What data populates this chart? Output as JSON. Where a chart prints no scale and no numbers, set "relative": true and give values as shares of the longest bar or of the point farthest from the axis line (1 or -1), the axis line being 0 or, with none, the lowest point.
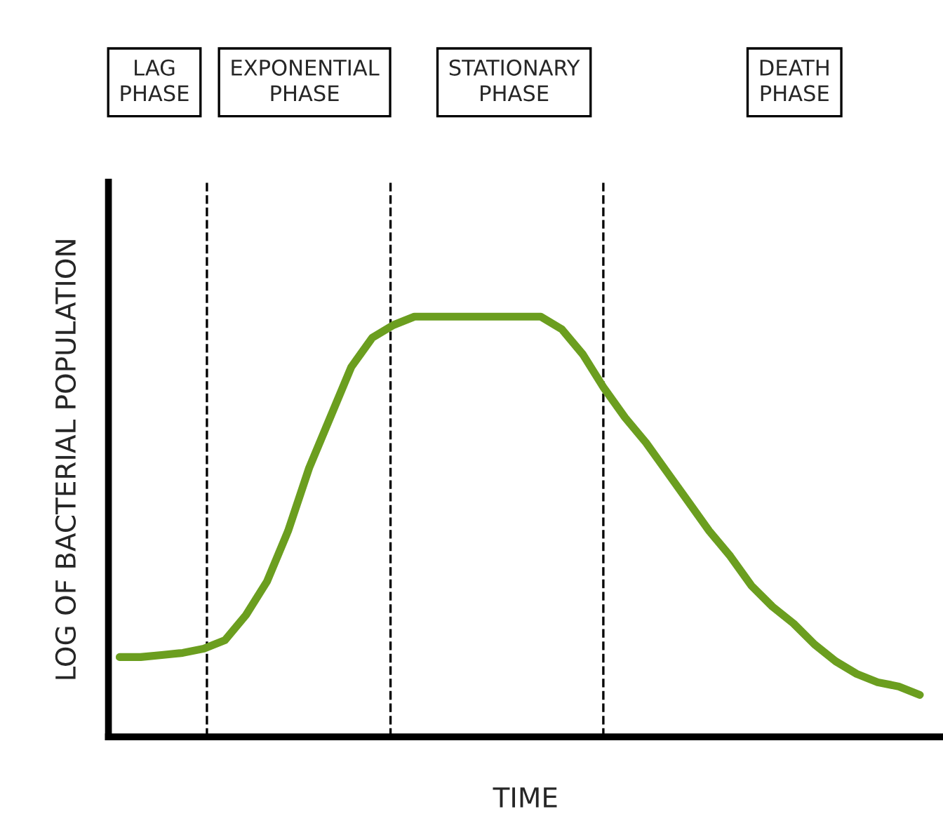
{
  "chart_data": {
    "type": "line",
    "relative": true,
    "xlabel": "TIME",
    "ylabel": "LOG OF BACTERIAL POPULATION",
    "categories": [
      null,
      null,
      null,
      null,
      null,
      null,
      null,
      null,
      null,
      null,
      null,
      null,
      null,
      null,
      null,
      null,
      null,
      null,
      null,
      null,
      null,
      null,
      null,
      null,
      null,
      null,
      null,
      null,
      null,
      null,
      null,
      null,
      null,
      null,
      null,
      null,
      null,
      null,
      null
    ],
    "series": [
      {
        "color": "#6b9e1f",
        "values": [
          0.19,
          0.19,
          0.195,
          0.2,
          0.21,
          0.23,
          0.29,
          0.37,
          0.49,
          0.64,
          0.76,
          0.88,
          0.95,
          0.98,
          1.0,
          1.0,
          1.0,
          1.0,
          1.0,
          1.0,
          1.0,
          0.97,
          0.91,
          0.83,
          0.76,
          0.7,
          0.63,
          0.56,
          0.49,
          0.43,
          0.36,
          0.31,
          0.27,
          0.22,
          0.18,
          0.15,
          0.13,
          0.12,
          0.1
        ]
      }
    ],
    "annotations": [
      "LAG\nPHASE",
      "EXPONENTIAL\nPHASE",
      "STATIONARY\nPHASE",
      "DEATH\nPHASE"
    ],
    "grid": "x",
    "legend": false,
    "marker": "none",
    "line_style": "solid"
  }
}
